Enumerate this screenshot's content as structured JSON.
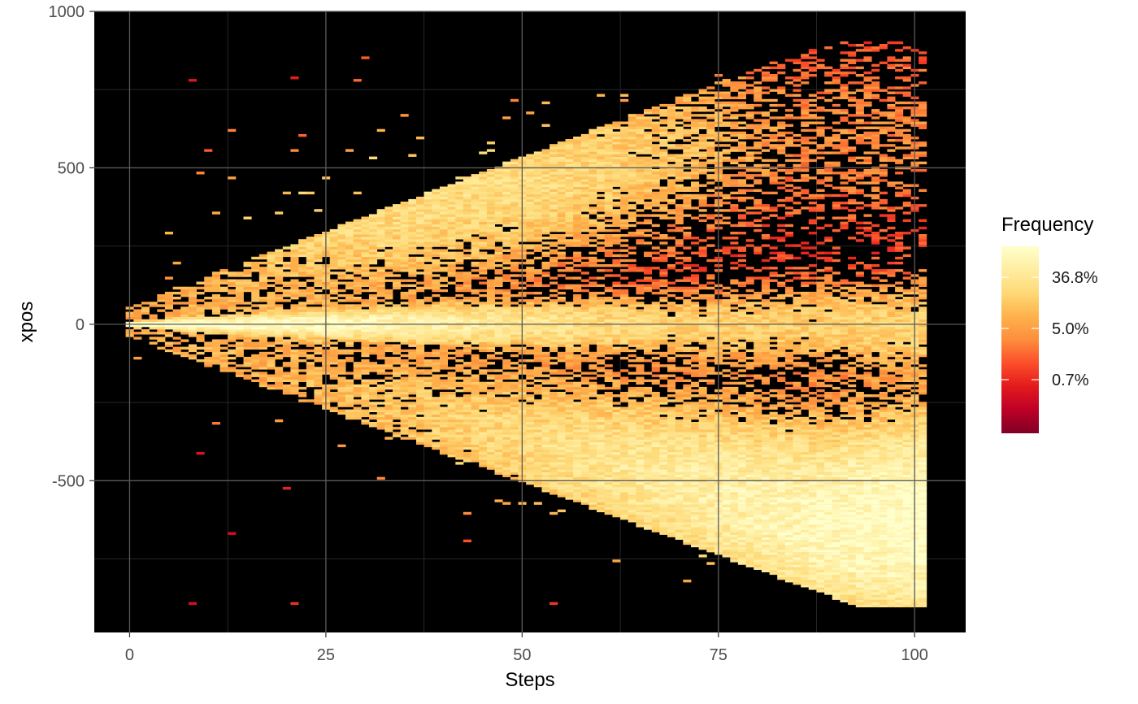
{
  "chart_data": {
    "type": "heatmap",
    "title": "",
    "xlabel": "Steps",
    "ylabel": "xpos",
    "xlim": [
      -4.5,
      106.5
    ],
    "ylim": [
      -985,
      1000
    ],
    "x_ticks": [
      0,
      25,
      50,
      75,
      100
    ],
    "x_tick_labels": [
      "0",
      "25",
      "50",
      "75",
      "100"
    ],
    "y_ticks": [
      -500,
      0,
      500,
      1000
    ],
    "y_tick_labels": [
      "-500",
      "0",
      "500",
      "1000"
    ],
    "grid": true,
    "background": "#000000",
    "x_range_of_data": [
      0,
      101
    ],
    "legend": {
      "title": "Frequency",
      "position": "right",
      "scale": "log",
      "breaks": [
        36.8,
        5.0,
        0.7
      ],
      "labels": [
        "36.8%",
        "5.0%",
        "0.7%"
      ],
      "colors": [
        "#800026",
        "#bd0026",
        "#e31a1c",
        "#fc4e2a",
        "#fd8d3c",
        "#feb24c",
        "#fed976",
        "#ffeda0",
        "#ffffcc"
      ]
    },
    "density_description": {
      "start_x": 0,
      "start_y": 0,
      "central_band_center": 0,
      "lower_mode": [
        {
          "x": 50,
          "y": -350
        },
        {
          "x": 75,
          "y": -550
        },
        {
          "x": 101,
          "y": -620
        }
      ],
      "upper_mode": [
        {
          "x": 50,
          "y": 450
        },
        {
          "x": 65,
          "y": 550
        },
        {
          "x": 80,
          "y": 450
        }
      ],
      "upper_max": 900,
      "lower_min": -900
    }
  }
}
